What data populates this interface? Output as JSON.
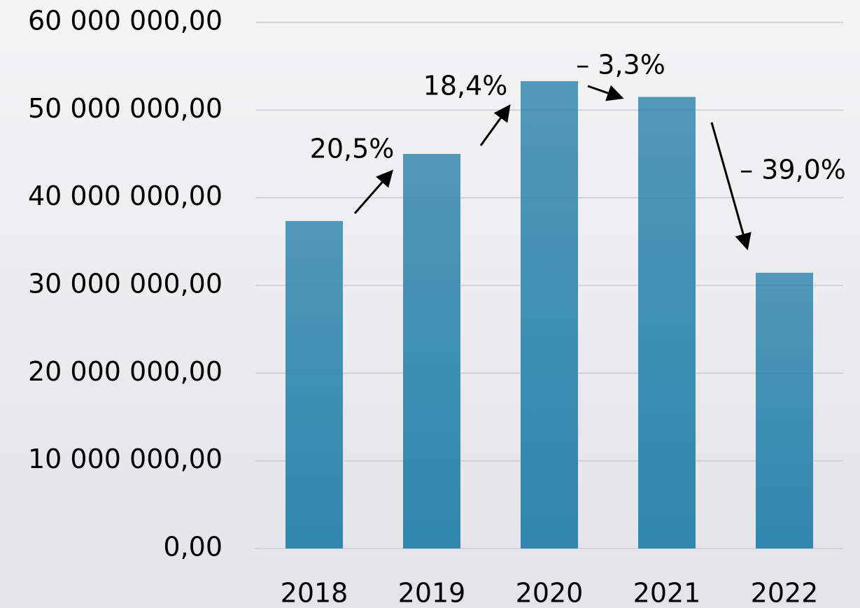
{
  "chart_data": {
    "type": "bar",
    "categories": [
      "2018",
      "2019",
      "2020",
      "2021",
      "2022"
    ],
    "values": [
      37350000,
      45000000,
      53300000,
      51500000,
      31450000
    ],
    "color": "#2f86ae",
    "ylim": [
      0,
      60000000
    ],
    "yticks": [
      {
        "value": 0,
        "label": "0,00"
      },
      {
        "value": 10000000,
        "label": "10 000 000,00"
      },
      {
        "value": 20000000,
        "label": "20 000 000,00"
      },
      {
        "value": 30000000,
        "label": "30 000 000,00"
      },
      {
        "value": 40000000,
        "label": "40 000 000,00"
      },
      {
        "value": 50000000,
        "label": "50 000 000,00"
      },
      {
        "value": 60000000,
        "label": "60 000 000,00"
      }
    ],
    "grid": true,
    "annotations": [
      "20,5%",
      "18,4%",
      "– 3,3%",
      "– 39,0%"
    ]
  }
}
